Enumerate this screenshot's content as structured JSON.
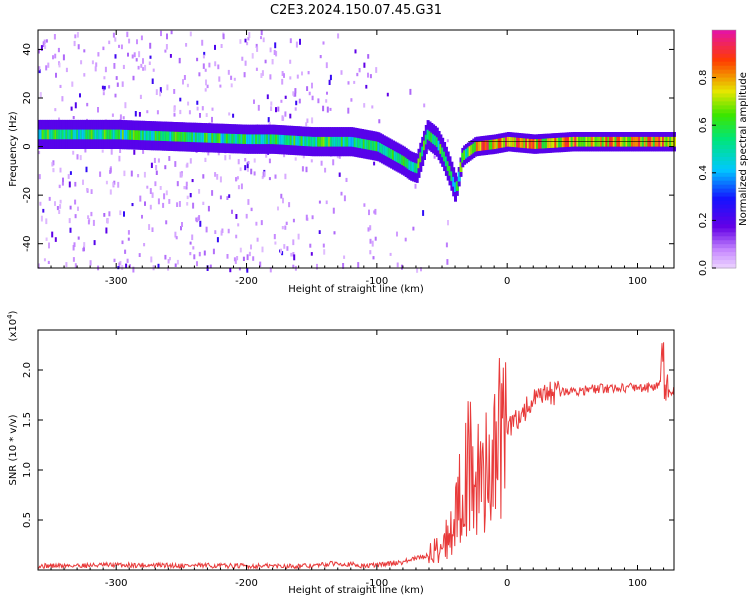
{
  "title": "C2E3.2024.150.07.45.G31",
  "chart_data": [
    {
      "type": "heatmap",
      "xlabel": "Height of straight line (km)",
      "ylabel": "Frequency (Hz)",
      "xlim": [
        -360,
        128
      ],
      "ylim": [
        -50,
        48
      ],
      "x_ticks": [
        -300,
        -200,
        -100,
        0,
        100
      ],
      "y_ticks": [
        -40,
        -20,
        0,
        20,
        40
      ],
      "colorbar": {
        "label": "Normalized spectral amplitude",
        "range": [
          0,
          1
        ],
        "ticks": [
          0.0,
          0.2,
          0.4,
          0.6,
          0.8
        ]
      },
      "ridge": {
        "x": [
          -360,
          -300,
          -250,
          -200,
          -180,
          -150,
          -120,
          -100,
          -90,
          -80,
          -75,
          -70,
          -62,
          -55,
          -50,
          -45,
          -40,
          -35,
          -25,
          -10,
          0,
          20,
          50,
          80,
          100,
          128
        ],
        "y": [
          5,
          5,
          4,
          3,
          3,
          2,
          2,
          0,
          -3,
          -6,
          -8,
          -9,
          5,
          2,
          -3,
          -10,
          -18,
          -4,
          0,
          1,
          2,
          1,
          2,
          2,
          2,
          2
        ]
      }
    },
    {
      "type": "line",
      "xlabel": "Height of straight line (km)",
      "ylabel": "SNR (10 * v/v)",
      "y_exponent_label": "(x10",
      "y_exponent_power": "4",
      "y_exponent_close": ")",
      "xlim": [
        -360,
        128
      ],
      "ylim": [
        0,
        2.4
      ],
      "x_ticks": [
        -300,
        -200,
        -100,
        0,
        100
      ],
      "y_ticks": [
        0.5,
        1.0,
        1.5,
        2.0
      ],
      "series": [
        {
          "color": "#e83a3a",
          "x": [
            -360,
            -300,
            -200,
            -150,
            -130,
            -110,
            -100,
            -80,
            -60,
            -50,
            -45,
            -40,
            -35,
            -30,
            -25,
            -20,
            -15,
            -10,
            -5,
            0,
            10,
            20,
            30,
            40,
            60,
            80,
            100,
            110,
            118,
            122,
            125,
            128
          ],
          "y": [
            0.04,
            0.05,
            0.04,
            0.04,
            0.07,
            0.04,
            0.05,
            0.08,
            0.15,
            0.25,
            0.35,
            0.5,
            0.8,
            1.05,
            0.9,
            0.85,
            1.1,
            1.15,
            1.3,
            1.4,
            1.55,
            1.68,
            1.75,
            1.78,
            1.8,
            1.82,
            1.83,
            1.82,
            1.85,
            1.9,
            1.8,
            1.8
          ]
        }
      ]
    }
  ]
}
